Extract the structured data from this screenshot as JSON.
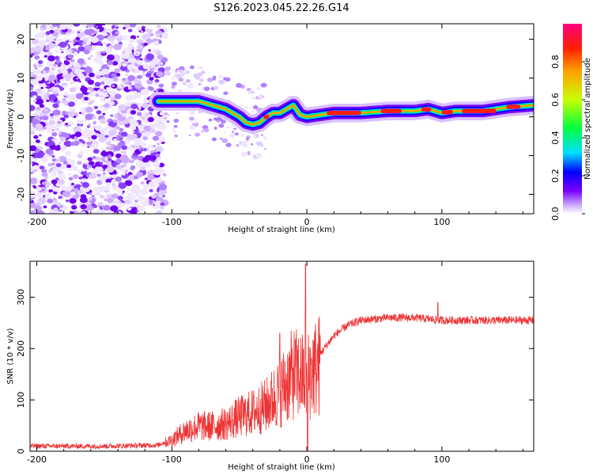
{
  "title": "S126.2023.045.22.26.G14",
  "chart_data": [
    {
      "id": "spectrogram",
      "type": "heatmap",
      "xlabel": "Height of straight line (km)",
      "ylabel": "Frequency (Hz)",
      "xlim": [
        -205,
        168
      ],
      "ylim": [
        -25,
        24
      ],
      "x_ticks": [
        -200,
        -100,
        0,
        100
      ],
      "y_ticks": [
        -20,
        -10,
        0,
        10,
        20
      ],
      "colorbar": {
        "label": "Normalized spectral amplitude",
        "range": [
          0,
          1
        ],
        "ticks": [
          "0.0",
          "0.2",
          "0.4",
          "0.6",
          "0.8"
        ],
        "colors": [
          "#ffffff",
          "#c8a0ff",
          "#7a00ff",
          "#0000ff",
          "#00e0ff",
          "#00ff40",
          "#c8ff00",
          "#ffa000",
          "#ff2000",
          "#ff0080"
        ]
      },
      "ridge": {
        "x": [
          -110,
          -100,
          -90,
          -80,
          -70,
          -60,
          -50,
          -45,
          -40,
          -35,
          -30,
          -25,
          -20,
          -15,
          -10,
          -5,
          0,
          10,
          20,
          40,
          60,
          80,
          90,
          100,
          110,
          130,
          150,
          168
        ],
        "freq_hz": [
          4,
          4,
          4,
          4,
          3,
          2,
          0,
          -1.5,
          -2,
          -1.5,
          0,
          1,
          1,
          2,
          3,
          0.5,
          0,
          0.5,
          1,
          1,
          1.5,
          1.5,
          2,
          1,
          1.5,
          1.5,
          2.5,
          3
        ]
      }
    },
    {
      "id": "snr",
      "type": "line",
      "xlabel": "Height of straight line (km)",
      "ylabel": "SNR (10 * v/v)",
      "xlim": [
        -205,
        168
      ],
      "ylim": [
        0,
        370
      ],
      "x_ticks": [
        -200,
        -100,
        0,
        100
      ],
      "y_ticks": [
        0,
        100,
        200,
        300
      ],
      "color": "#ee3333",
      "envelope": {
        "x": [
          -205,
          -150,
          -110,
          -100,
          -90,
          -80,
          -70,
          -60,
          -50,
          -40,
          -30,
          -20,
          -15,
          -10,
          -5,
          -2,
          0,
          5,
          10,
          20,
          30,
          40,
          60,
          80,
          100,
          120,
          140,
          168
        ],
        "y": [
          10,
          10,
          12,
          25,
          45,
          55,
          55,
          60,
          75,
          85,
          100,
          130,
          150,
          170,
          165,
          160,
          160,
          180,
          190,
          225,
          245,
          255,
          260,
          260,
          255,
          255,
          255,
          255
        ]
      },
      "peaks": [
        {
          "x": -1,
          "y": 365
        },
        {
          "x": -20,
          "y": 230
        },
        {
          "x": 97,
          "y": 290
        }
      ]
    }
  ]
}
